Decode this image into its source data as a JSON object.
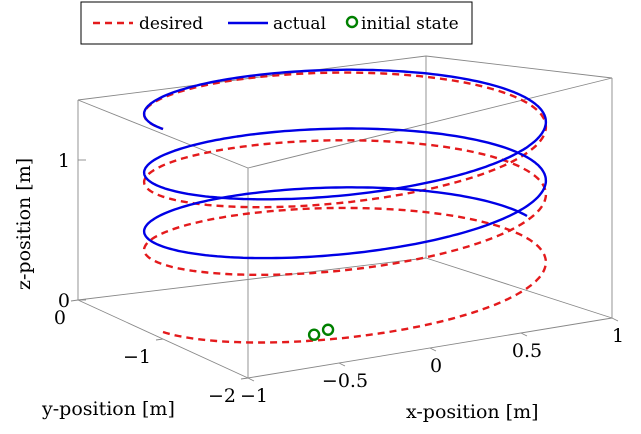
{
  "chart_data": {
    "type": "line",
    "projection": "3d",
    "xlabel": "x-position [m]",
    "ylabel": "y-position [m]",
    "zlabel": "z-position [m]",
    "xlim": [
      -1,
      1
    ],
    "ylim": [
      -2,
      0
    ],
    "zlim": [
      0,
      1.5
    ],
    "x_ticks": [
      "−1",
      "−0.5",
      "0",
      "0.5",
      "1"
    ],
    "y_ticks": [
      "−2",
      "−1",
      "0"
    ],
    "z_ticks": [
      "0",
      "1"
    ],
    "grid": false,
    "box": true,
    "legend_position": "top-left",
    "series": [
      {
        "name": "desired",
        "style": "dashed",
        "color": "#e41a1c",
        "helix": {
          "center_x": 0,
          "center_y": -1,
          "radius": 1,
          "z_start": 0.05,
          "z_end": 1.5,
          "turns": 3,
          "start_angle_deg": 180
        }
      },
      {
        "name": "actual",
        "style": "solid",
        "color": "#0000e6",
        "helix": {
          "center_x": 0,
          "center_y": -1,
          "radius": 1,
          "z_start": 0.45,
          "z_end": 1.5,
          "turns": 2.5
        }
      },
      {
        "name": "initial state",
        "style": "marker",
        "color": "#008000",
        "points": [
          {
            "x": -0.45,
            "y": -1.6,
            "z": 0.08
          },
          {
            "x": -0.35,
            "y": -1.55,
            "z": 0.08
          }
        ]
      }
    ]
  }
}
